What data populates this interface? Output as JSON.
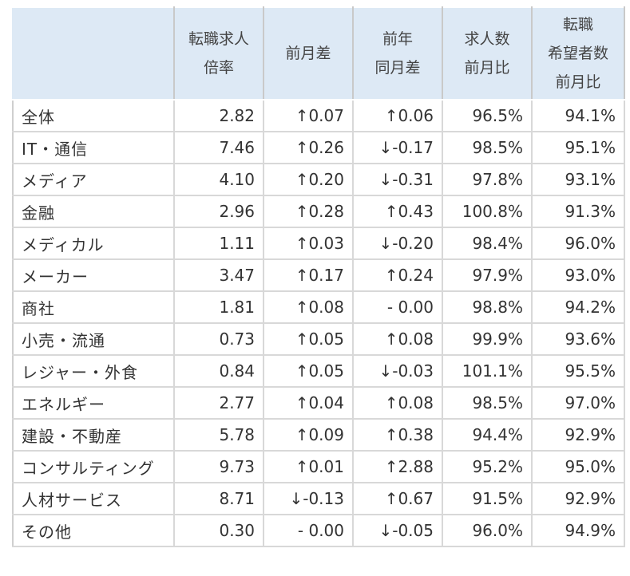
{
  "headers": [
    {
      "lines": [
        ""
      ]
    },
    {
      "lines": [
        "転職求人",
        "倍率"
      ]
    },
    {
      "lines": [
        "前月差"
      ]
    },
    {
      "lines": [
        "前年",
        "同月差"
      ]
    },
    {
      "lines": [
        "求人数",
        "前月比"
      ]
    },
    {
      "lines": [
        "転職",
        "希望者数",
        "前月比"
      ]
    }
  ],
  "rows": [
    {
      "name": "全体",
      "ratio": "2.82",
      "mom": "↑0.07",
      "yoy": "↑0.06",
      "jobs": "96.5%",
      "seekers": "94.1%"
    },
    {
      "name": "IT・通信",
      "ratio": "7.46",
      "mom": "↑0.26",
      "yoy": "↓-0.17",
      "jobs": "98.5%",
      "seekers": "95.1%"
    },
    {
      "name": "メディア",
      "ratio": "4.10",
      "mom": "↑0.20",
      "yoy": "↓-0.31",
      "jobs": "97.8%",
      "seekers": "93.1%"
    },
    {
      "name": "金融",
      "ratio": "2.96",
      "mom": "↑0.28",
      "yoy": "↑0.43",
      "jobs": "100.8%",
      "seekers": "91.3%"
    },
    {
      "name": "メディカル",
      "ratio": "1.11",
      "mom": "↑0.03",
      "yoy": "↓-0.20",
      "jobs": "98.4%",
      "seekers": "96.0%"
    },
    {
      "name": "メーカー",
      "ratio": "3.47",
      "mom": "↑0.17",
      "yoy": "↑0.24",
      "jobs": "97.9%",
      "seekers": "93.0%"
    },
    {
      "name": "商社",
      "ratio": "1.81",
      "mom": "↑0.08",
      "yoy": "- 0.00",
      "jobs": "98.8%",
      "seekers": "94.2%"
    },
    {
      "name": "小売・流通",
      "ratio": "0.73",
      "mom": "↑0.05",
      "yoy": "↑0.08",
      "jobs": "99.9%",
      "seekers": "93.6%"
    },
    {
      "name": "レジャー・外食",
      "ratio": "0.84",
      "mom": "↑0.05",
      "yoy": "↓-0.03",
      "jobs": "101.1%",
      "seekers": "95.5%"
    },
    {
      "name": "エネルギー",
      "ratio": "2.77",
      "mom": "↑0.04",
      "yoy": "↑0.08",
      "jobs": "98.5%",
      "seekers": "97.0%"
    },
    {
      "name": "建設・不動産",
      "ratio": "5.78",
      "mom": "↑0.09",
      "yoy": "↑0.38",
      "jobs": "94.4%",
      "seekers": "92.9%"
    },
    {
      "name": "コンサルティング",
      "ratio": "9.73",
      "mom": "↑0.01",
      "yoy": "↑2.88",
      "jobs": "95.2%",
      "seekers": "95.0%"
    },
    {
      "name": "人材サービス",
      "ratio": "8.71",
      "mom": "↓-0.13",
      "yoy": "↑0.67",
      "jobs": "91.5%",
      "seekers": "92.9%"
    },
    {
      "name": "その他",
      "ratio": "0.30",
      "mom": "- 0.00",
      "yoy": "↓-0.05",
      "jobs": "96.0%",
      "seekers": "94.9%"
    }
  ],
  "colors": {
    "header_bg": "#dde9f5",
    "text": "#333333",
    "grid": "#d8d8d8"
  }
}
